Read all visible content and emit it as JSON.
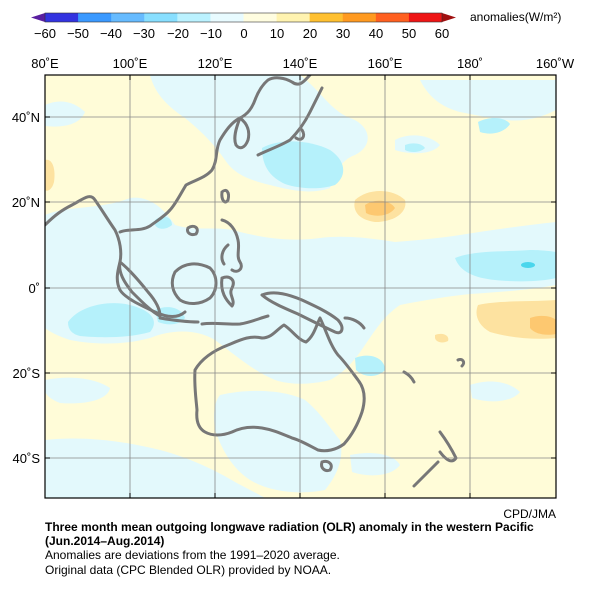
{
  "legend": {
    "unit_label": "anomalies(W/m²)",
    "ticks": [
      "−60",
      "−50",
      "−40",
      "−30",
      "−20",
      "−10",
      "0",
      "10",
      "20",
      "30",
      "40",
      "50",
      "60"
    ],
    "colors": [
      "#3333e0",
      "#3a99ff",
      "#66bbff",
      "#88dfff",
      "#bbf2ff",
      "#e8fbff",
      "#fffde0",
      "#fff3b0",
      "#ffc030",
      "#ff9a20",
      "#ff6020",
      "#ee1515"
    ]
  },
  "map": {
    "top_labels": [
      "80˚E",
      "100˚E",
      "120˚E",
      "140˚E",
      "160˚E",
      "180˚",
      "160˚W"
    ],
    "left_labels": [
      "40˚N",
      "20˚N",
      "0˚",
      "20˚S",
      "40˚S"
    ],
    "coast_color": "#777777",
    "grid_color": "#888888"
  },
  "credit": "CPD/JMA",
  "caption": {
    "title_line1": "Three month mean outgoing longwave radiation (OLR) anomaly in the western Pacific",
    "title_line2": "(Jun.2014–Aug.2014)",
    "note1": "Anomalies are deviations from the 1991–2020 average.",
    "note2": "Original data (CPC Blended OLR) provided by NOAA."
  }
}
